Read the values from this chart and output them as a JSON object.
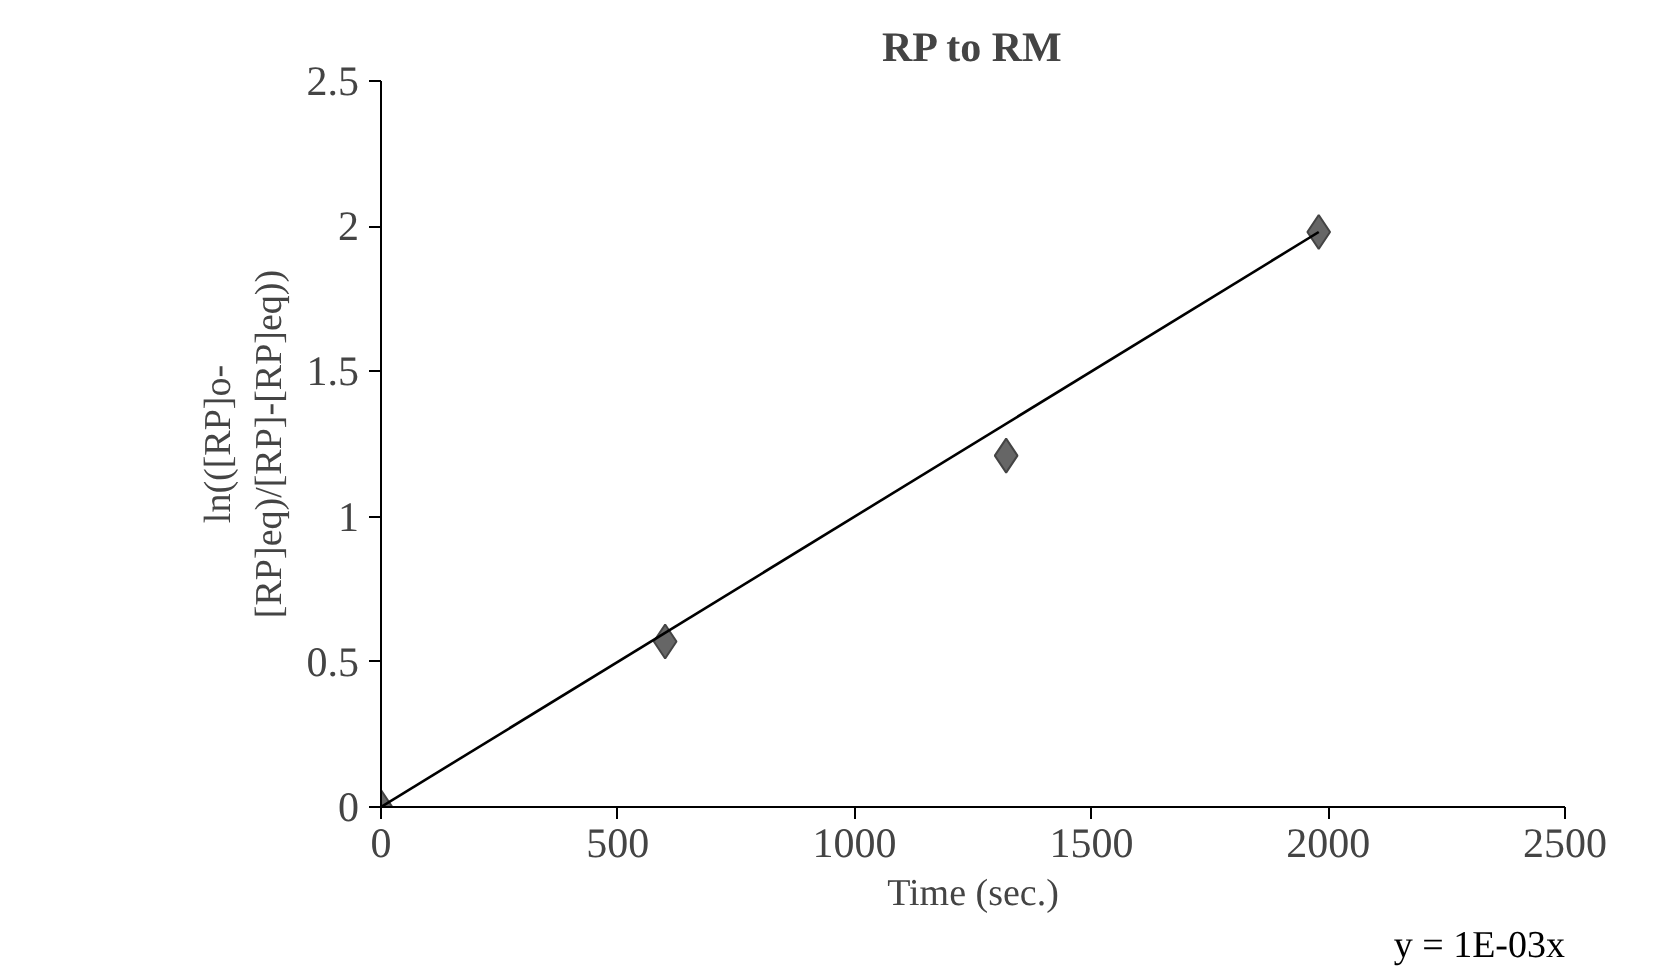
{
  "chart_data": {
    "type": "scatter",
    "title": "RP to RM",
    "xlabel": "Time (sec.)",
    "ylabel": "ln(([RP]o-[RP]eq)/[RP]-[RP]eq))",
    "x": [
      0,
      600,
      1320,
      1980
    ],
    "series": [
      {
        "color": "#666666",
        "marker": "diamond",
        "values": [
          0,
          0.57,
          1.21,
          1.98
        ]
      },
      {
        "type": "line",
        "color": "#000000",
        "x": [
          0,
          1980
        ],
        "values": [
          0,
          1.98
        ]
      }
    ],
    "grid": false,
    "xlim": [
      0,
      2500
    ],
    "xticks": [
      0,
      500,
      1000,
      1500,
      2000,
      2500
    ],
    "ylim": [
      0,
      2.5
    ],
    "yticks": [
      0,
      0.5,
      1,
      1.5,
      2,
      2.5
    ],
    "annotations": [
      "y = 1E-03x"
    ]
  }
}
